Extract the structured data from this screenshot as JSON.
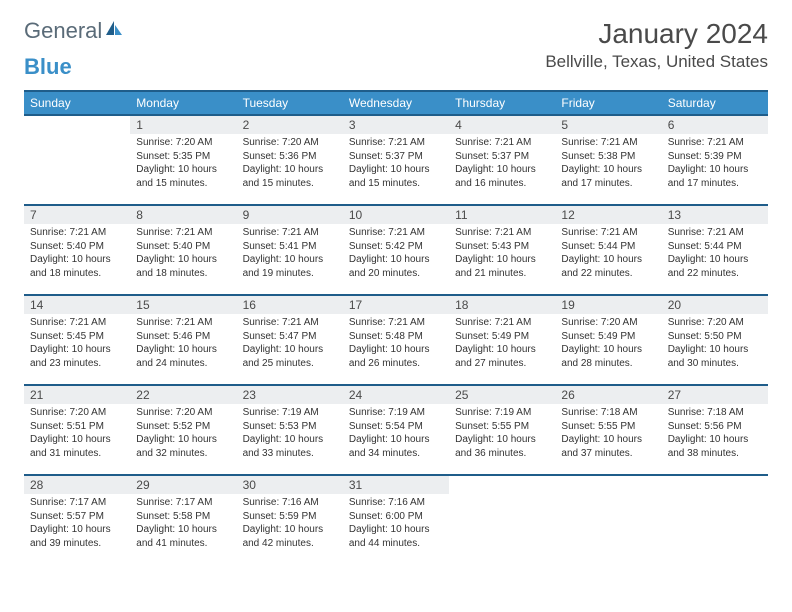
{
  "logo": {
    "text1": "General",
    "text2": "Blue"
  },
  "title": "January 2024",
  "subtitle": "Bellville, Texas, United States",
  "colors": {
    "header_bg": "#3a8fc8",
    "header_border": "#1f5d8a",
    "daynum_bg": "#eceef0",
    "text": "#333333"
  },
  "day_labels": [
    "Sunday",
    "Monday",
    "Tuesday",
    "Wednesday",
    "Thursday",
    "Friday",
    "Saturday"
  ],
  "weeks": [
    [
      null,
      {
        "n": "1",
        "sr": "7:20 AM",
        "ss": "5:35 PM",
        "dl": "10 hours and 15 minutes."
      },
      {
        "n": "2",
        "sr": "7:20 AM",
        "ss": "5:36 PM",
        "dl": "10 hours and 15 minutes."
      },
      {
        "n": "3",
        "sr": "7:21 AM",
        "ss": "5:37 PM",
        "dl": "10 hours and 15 minutes."
      },
      {
        "n": "4",
        "sr": "7:21 AM",
        "ss": "5:37 PM",
        "dl": "10 hours and 16 minutes."
      },
      {
        "n": "5",
        "sr": "7:21 AM",
        "ss": "5:38 PM",
        "dl": "10 hours and 17 minutes."
      },
      {
        "n": "6",
        "sr": "7:21 AM",
        "ss": "5:39 PM",
        "dl": "10 hours and 17 minutes."
      }
    ],
    [
      {
        "n": "7",
        "sr": "7:21 AM",
        "ss": "5:40 PM",
        "dl": "10 hours and 18 minutes."
      },
      {
        "n": "8",
        "sr": "7:21 AM",
        "ss": "5:40 PM",
        "dl": "10 hours and 18 minutes."
      },
      {
        "n": "9",
        "sr": "7:21 AM",
        "ss": "5:41 PM",
        "dl": "10 hours and 19 minutes."
      },
      {
        "n": "10",
        "sr": "7:21 AM",
        "ss": "5:42 PM",
        "dl": "10 hours and 20 minutes."
      },
      {
        "n": "11",
        "sr": "7:21 AM",
        "ss": "5:43 PM",
        "dl": "10 hours and 21 minutes."
      },
      {
        "n": "12",
        "sr": "7:21 AM",
        "ss": "5:44 PM",
        "dl": "10 hours and 22 minutes."
      },
      {
        "n": "13",
        "sr": "7:21 AM",
        "ss": "5:44 PM",
        "dl": "10 hours and 22 minutes."
      }
    ],
    [
      {
        "n": "14",
        "sr": "7:21 AM",
        "ss": "5:45 PM",
        "dl": "10 hours and 23 minutes."
      },
      {
        "n": "15",
        "sr": "7:21 AM",
        "ss": "5:46 PM",
        "dl": "10 hours and 24 minutes."
      },
      {
        "n": "16",
        "sr": "7:21 AM",
        "ss": "5:47 PM",
        "dl": "10 hours and 25 minutes."
      },
      {
        "n": "17",
        "sr": "7:21 AM",
        "ss": "5:48 PM",
        "dl": "10 hours and 26 minutes."
      },
      {
        "n": "18",
        "sr": "7:21 AM",
        "ss": "5:49 PM",
        "dl": "10 hours and 27 minutes."
      },
      {
        "n": "19",
        "sr": "7:20 AM",
        "ss": "5:49 PM",
        "dl": "10 hours and 28 minutes."
      },
      {
        "n": "20",
        "sr": "7:20 AM",
        "ss": "5:50 PM",
        "dl": "10 hours and 30 minutes."
      }
    ],
    [
      {
        "n": "21",
        "sr": "7:20 AM",
        "ss": "5:51 PM",
        "dl": "10 hours and 31 minutes."
      },
      {
        "n": "22",
        "sr": "7:20 AM",
        "ss": "5:52 PM",
        "dl": "10 hours and 32 minutes."
      },
      {
        "n": "23",
        "sr": "7:19 AM",
        "ss": "5:53 PM",
        "dl": "10 hours and 33 minutes."
      },
      {
        "n": "24",
        "sr": "7:19 AM",
        "ss": "5:54 PM",
        "dl": "10 hours and 34 minutes."
      },
      {
        "n": "25",
        "sr": "7:19 AM",
        "ss": "5:55 PM",
        "dl": "10 hours and 36 minutes."
      },
      {
        "n": "26",
        "sr": "7:18 AM",
        "ss": "5:55 PM",
        "dl": "10 hours and 37 minutes."
      },
      {
        "n": "27",
        "sr": "7:18 AM",
        "ss": "5:56 PM",
        "dl": "10 hours and 38 minutes."
      }
    ],
    [
      {
        "n": "28",
        "sr": "7:17 AM",
        "ss": "5:57 PM",
        "dl": "10 hours and 39 minutes."
      },
      {
        "n": "29",
        "sr": "7:17 AM",
        "ss": "5:58 PM",
        "dl": "10 hours and 41 minutes."
      },
      {
        "n": "30",
        "sr": "7:16 AM",
        "ss": "5:59 PM",
        "dl": "10 hours and 42 minutes."
      },
      {
        "n": "31",
        "sr": "7:16 AM",
        "ss": "6:00 PM",
        "dl": "10 hours and 44 minutes."
      },
      null,
      null,
      null
    ]
  ],
  "labels": {
    "sunrise": "Sunrise:",
    "sunset": "Sunset:",
    "daylight": "Daylight:"
  }
}
